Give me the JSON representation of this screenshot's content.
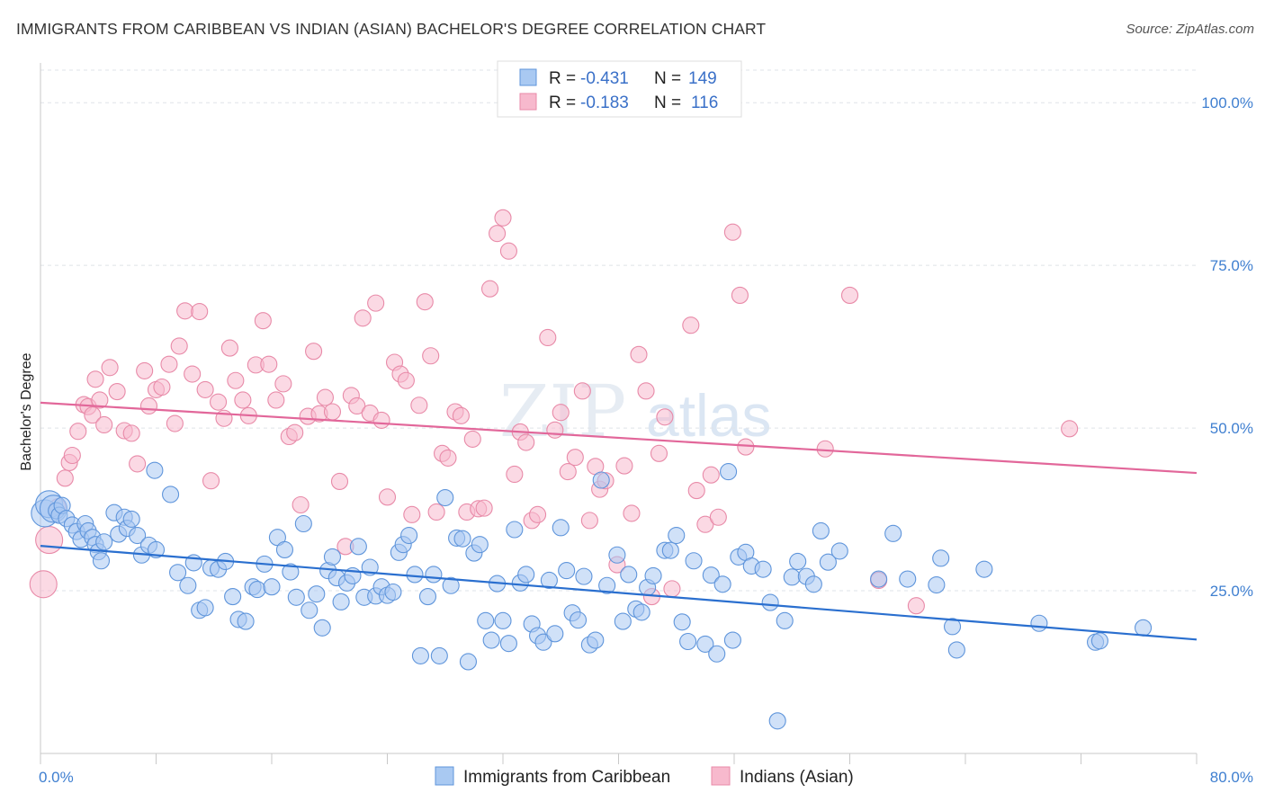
{
  "header": {
    "title": "IMMIGRANTS FROM CARIBBEAN VS INDIAN (ASIAN) BACHELOR'S DEGREE CORRELATION CHART",
    "source": "Source: ZipAtlas.com"
  },
  "watermark": {
    "zip": "ZIP",
    "atlas": "atlas"
  },
  "legend": {
    "rows": [
      {
        "r_label": "R =",
        "r_value": "-0.431",
        "n_label": "N =",
        "n_value": "149"
      },
      {
        "r_label": "R =",
        "r_value": "-0.183",
        "n_label": "N =",
        "n_value": "116"
      }
    ]
  },
  "colors": {
    "blue_fill": "#a9c9f2",
    "blue_stroke": "#5f95db",
    "blue_line": "#2a6fcf",
    "pink_fill": "#f7b9cd",
    "pink_stroke": "#e88aa8",
    "pink_line": "#e2679a"
  },
  "chart_data": {
    "type": "scatter",
    "title": "IMMIGRANTS FROM CARIBBEAN VS INDIAN (ASIAN) BACHELOR'S DEGREE CORRELATION CHART",
    "xlabel": "",
    "ylabel": "Bachelor's Degree",
    "xlim": [
      0,
      80
    ],
    "ylim": [
      0,
      105
    ],
    "x_tick_labels": [
      "0.0%",
      "80.0%"
    ],
    "y_tick_labels": [
      "25.0%",
      "50.0%",
      "75.0%",
      "100.0%"
    ],
    "y_ticks": [
      25,
      50,
      75,
      100
    ],
    "grid": true,
    "legend_placement": "top-center",
    "series": [
      {
        "name": "Immigrants from Caribbean",
        "color": "#a9c9f2",
        "trend": {
          "x": [
            0,
            80
          ],
          "y": [
            31.9,
            17.5
          ]
        },
        "points": [
          [
            0.3,
            36.9
          ],
          [
            0.6,
            38.3
          ],
          [
            0.9,
            37.6
          ],
          [
            1.1,
            37.3
          ],
          [
            1.3,
            36.6
          ],
          [
            1.5,
            38.1
          ],
          [
            1.8,
            36.1
          ],
          [
            2.2,
            35.1
          ],
          [
            2.5,
            34.1
          ],
          [
            2.8,
            32.9
          ],
          [
            3.1,
            35.3
          ],
          [
            3.3,
            34.2
          ],
          [
            3.6,
            33.2
          ],
          [
            3.8,
            32.1
          ],
          [
            4.0,
            31.0
          ],
          [
            4.2,
            29.6
          ],
          [
            4.4,
            32.5
          ],
          [
            5.1,
            37.0
          ],
          [
            5.4,
            33.7
          ],
          [
            5.8,
            36.3
          ],
          [
            6.0,
            34.6
          ],
          [
            6.3,
            36.0
          ],
          [
            6.7,
            33.5
          ],
          [
            7.0,
            30.5
          ],
          [
            7.5,
            32.0
          ],
          [
            8.0,
            31.3
          ],
          [
            7.9,
            43.5
          ],
          [
            9.0,
            39.8
          ],
          [
            9.5,
            27.8
          ],
          [
            10.2,
            25.8
          ],
          [
            10.6,
            29.3
          ],
          [
            11.0,
            22.0
          ],
          [
            11.4,
            22.4
          ],
          [
            11.8,
            28.5
          ],
          [
            12.3,
            28.3
          ],
          [
            12.8,
            29.5
          ],
          [
            13.3,
            24.1
          ],
          [
            13.7,
            20.6
          ],
          [
            14.2,
            20.3
          ],
          [
            14.7,
            25.6
          ],
          [
            15.0,
            25.2
          ],
          [
            15.5,
            29.1
          ],
          [
            16.0,
            25.6
          ],
          [
            16.4,
            33.2
          ],
          [
            16.9,
            31.3
          ],
          [
            17.3,
            27.9
          ],
          [
            17.7,
            24.0
          ],
          [
            18.2,
            35.3
          ],
          [
            18.6,
            22.0
          ],
          [
            19.1,
            24.5
          ],
          [
            19.5,
            19.3
          ],
          [
            19.9,
            28.1
          ],
          [
            20.2,
            30.2
          ],
          [
            20.5,
            27.0
          ],
          [
            20.8,
            23.3
          ],
          [
            21.2,
            26.2
          ],
          [
            21.6,
            27.3
          ],
          [
            22.0,
            31.8
          ],
          [
            22.4,
            24.0
          ],
          [
            22.8,
            28.6
          ],
          [
            23.2,
            24.2
          ],
          [
            23.6,
            25.6
          ],
          [
            24.0,
            24.3
          ],
          [
            24.4,
            24.8
          ],
          [
            24.8,
            30.9
          ],
          [
            25.1,
            32.1
          ],
          [
            25.5,
            33.5
          ],
          [
            25.9,
            27.5
          ],
          [
            26.3,
            15.0
          ],
          [
            26.8,
            24.1
          ],
          [
            27.2,
            27.5
          ],
          [
            27.6,
            15.0
          ],
          [
            28.0,
            39.3
          ],
          [
            28.4,
            25.8
          ],
          [
            28.8,
            33.1
          ],
          [
            29.2,
            33.0
          ],
          [
            29.6,
            14.1
          ],
          [
            30.0,
            30.8
          ],
          [
            30.4,
            32.1
          ],
          [
            30.8,
            20.4
          ],
          [
            31.2,
            17.4
          ],
          [
            31.6,
            26.1
          ],
          [
            32.0,
            20.4
          ],
          [
            32.4,
            16.9
          ],
          [
            32.8,
            34.4
          ],
          [
            33.2,
            26.2
          ],
          [
            33.6,
            27.5
          ],
          [
            34.0,
            19.9
          ],
          [
            34.4,
            18.1
          ],
          [
            34.8,
            17.1
          ],
          [
            35.2,
            26.6
          ],
          [
            35.6,
            18.4
          ],
          [
            36.0,
            34.7
          ],
          [
            36.4,
            28.1
          ],
          [
            36.8,
            21.6
          ],
          [
            37.2,
            20.5
          ],
          [
            37.6,
            27.2
          ],
          [
            38.0,
            16.7
          ],
          [
            38.4,
            17.4
          ],
          [
            38.8,
            42.0
          ],
          [
            39.2,
            25.8
          ],
          [
            39.9,
            30.5
          ],
          [
            40.3,
            20.3
          ],
          [
            40.7,
            27.5
          ],
          [
            41.2,
            22.2
          ],
          [
            41.6,
            21.7
          ],
          [
            42.0,
            25.5
          ],
          [
            42.4,
            27.3
          ],
          [
            43.2,
            31.2
          ],
          [
            43.6,
            31.2
          ],
          [
            44.0,
            33.5
          ],
          [
            44.4,
            20.2
          ],
          [
            44.8,
            17.2
          ],
          [
            45.2,
            29.6
          ],
          [
            46.0,
            16.8
          ],
          [
            46.4,
            27.4
          ],
          [
            46.8,
            15.3
          ],
          [
            47.2,
            26.0
          ],
          [
            47.6,
            43.3
          ],
          [
            47.9,
            17.4
          ],
          [
            48.3,
            30.2
          ],
          [
            48.8,
            30.9
          ],
          [
            49.2,
            28.8
          ],
          [
            50.0,
            28.3
          ],
          [
            50.5,
            23.2
          ],
          [
            51.0,
            5.0
          ],
          [
            51.5,
            20.4
          ],
          [
            52.0,
            27.1
          ],
          [
            52.4,
            29.5
          ],
          [
            53.0,
            27.2
          ],
          [
            53.5,
            26.0
          ],
          [
            54.0,
            34.2
          ],
          [
            54.5,
            29.4
          ],
          [
            55.3,
            31.1
          ],
          [
            58.0,
            26.8
          ],
          [
            59.0,
            33.8
          ],
          [
            60.0,
            26.8
          ],
          [
            62.0,
            25.9
          ],
          [
            62.3,
            30.0
          ],
          [
            63.1,
            19.5
          ],
          [
            63.4,
            15.9
          ],
          [
            65.3,
            28.3
          ],
          [
            69.1,
            20.0
          ],
          [
            73.0,
            17.1
          ],
          [
            73.3,
            17.3
          ],
          [
            76.3,
            19.3
          ]
        ]
      },
      {
        "name": "Indians (Asian)",
        "color": "#f7b9cd",
        "trend": {
          "x": [
            0,
            80
          ],
          "y": [
            53.9,
            43.1
          ]
        },
        "points": [
          [
            0.2,
            26.0
          ],
          [
            0.6,
            32.8
          ],
          [
            1.2,
            37.9
          ],
          [
            1.7,
            42.3
          ],
          [
            2.0,
            44.7
          ],
          [
            2.2,
            45.8
          ],
          [
            2.6,
            49.5
          ],
          [
            3.0,
            53.6
          ],
          [
            3.3,
            53.3
          ],
          [
            3.6,
            52.0
          ],
          [
            3.8,
            57.5
          ],
          [
            4.1,
            54.3
          ],
          [
            4.4,
            50.5
          ],
          [
            4.8,
            59.3
          ],
          [
            5.3,
            55.6
          ],
          [
            5.8,
            49.6
          ],
          [
            6.3,
            49.2
          ],
          [
            6.7,
            44.5
          ],
          [
            7.2,
            58.8
          ],
          [
            7.5,
            53.4
          ],
          [
            8.0,
            55.9
          ],
          [
            8.4,
            56.3
          ],
          [
            8.9,
            59.8
          ],
          [
            9.3,
            50.7
          ],
          [
            9.6,
            62.6
          ],
          [
            10.0,
            68.0
          ],
          [
            10.5,
            58.3
          ],
          [
            11.0,
            67.9
          ],
          [
            11.4,
            55.9
          ],
          [
            11.8,
            41.9
          ],
          [
            12.3,
            54.0
          ],
          [
            12.7,
            51.5
          ],
          [
            13.1,
            62.3
          ],
          [
            13.5,
            57.3
          ],
          [
            14.0,
            54.3
          ],
          [
            14.4,
            51.9
          ],
          [
            14.9,
            59.7
          ],
          [
            15.4,
            66.5
          ],
          [
            15.8,
            59.8
          ],
          [
            16.3,
            54.3
          ],
          [
            16.8,
            56.8
          ],
          [
            17.2,
            48.7
          ],
          [
            17.6,
            49.3
          ],
          [
            18.0,
            38.2
          ],
          [
            18.5,
            51.8
          ],
          [
            18.9,
            61.8
          ],
          [
            19.3,
            52.2
          ],
          [
            19.7,
            54.7
          ],
          [
            20.2,
            52.5
          ],
          [
            20.7,
            41.8
          ],
          [
            21.1,
            31.8
          ],
          [
            21.5,
            55.0
          ],
          [
            21.9,
            53.4
          ],
          [
            22.3,
            66.9
          ],
          [
            22.8,
            52.3
          ],
          [
            23.2,
            69.2
          ],
          [
            23.6,
            51.2
          ],
          [
            24.0,
            39.4
          ],
          [
            24.5,
            60.1
          ],
          [
            24.9,
            58.3
          ],
          [
            25.3,
            57.3
          ],
          [
            25.7,
            36.7
          ],
          [
            26.2,
            53.5
          ],
          [
            26.6,
            69.4
          ],
          [
            27.0,
            61.1
          ],
          [
            27.4,
            37.1
          ],
          [
            27.8,
            46.1
          ],
          [
            28.2,
            45.4
          ],
          [
            28.7,
            52.5
          ],
          [
            29.1,
            51.9
          ],
          [
            29.5,
            37.1
          ],
          [
            29.9,
            48.3
          ],
          [
            30.3,
            37.6
          ],
          [
            30.7,
            37.7
          ],
          [
            31.1,
            71.4
          ],
          [
            31.6,
            79.9
          ],
          [
            32.0,
            82.3
          ],
          [
            32.4,
            77.2
          ],
          [
            32.8,
            42.9
          ],
          [
            33.2,
            49.4
          ],
          [
            33.6,
            47.8
          ],
          [
            34.0,
            35.8
          ],
          [
            34.4,
            36.7
          ],
          [
            35.1,
            63.9
          ],
          [
            35.6,
            49.7
          ],
          [
            36.0,
            52.4
          ],
          [
            36.5,
            43.3
          ],
          [
            37.0,
            45.5
          ],
          [
            37.5,
            55.7
          ],
          [
            38.0,
            35.8
          ],
          [
            38.4,
            44.1
          ],
          [
            38.7,
            40.6
          ],
          [
            39.1,
            41.9
          ],
          [
            39.9,
            29.0
          ],
          [
            40.4,
            44.2
          ],
          [
            40.9,
            36.9
          ],
          [
            41.4,
            61.3
          ],
          [
            41.9,
            55.7
          ],
          [
            42.3,
            24.1
          ],
          [
            42.8,
            46.1
          ],
          [
            43.2,
            51.7
          ],
          [
            43.7,
            25.3
          ],
          [
            45.0,
            65.8
          ],
          [
            45.4,
            40.4
          ],
          [
            46.0,
            35.2
          ],
          [
            46.4,
            42.8
          ],
          [
            46.9,
            36.3
          ],
          [
            47.9,
            80.1
          ],
          [
            48.4,
            70.4
          ],
          [
            48.8,
            47.1
          ],
          [
            54.3,
            46.8
          ],
          [
            56.0,
            70.4
          ],
          [
            58.0,
            26.6
          ],
          [
            60.6,
            22.7
          ],
          [
            71.2,
            49.9
          ]
        ]
      }
    ]
  }
}
